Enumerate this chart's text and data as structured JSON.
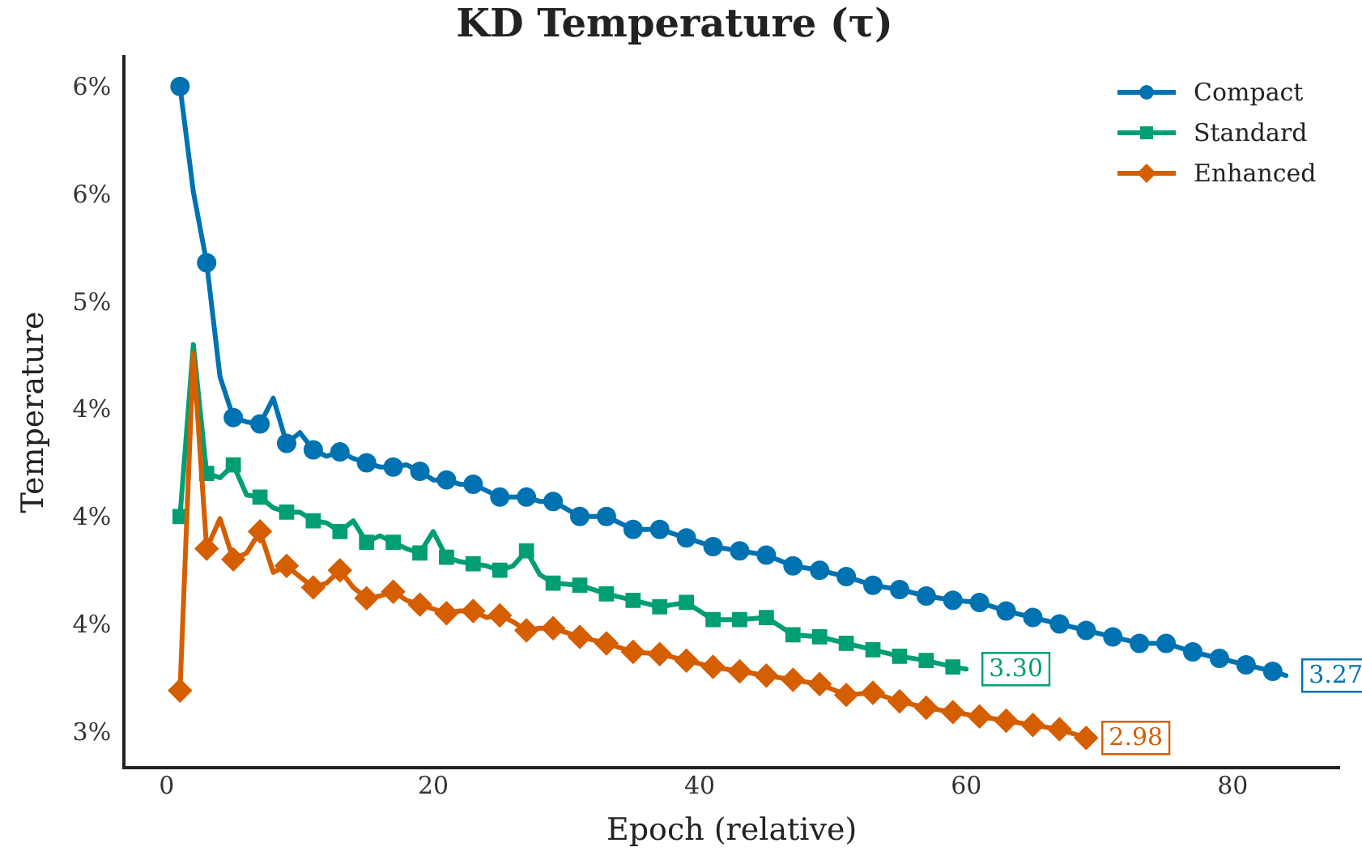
{
  "chart_data": {
    "type": "line",
    "title": "KD Temperature (τ)",
    "xlabel": "Epoch (relative)",
    "ylabel": "Temperature",
    "xlim": [
      -3.2,
      88
    ],
    "xticks": [
      0,
      20,
      40,
      60,
      80
    ],
    "ylim": [
      2.84,
      6.15
    ],
    "yticks": [
      {
        "value": 3.0,
        "label": "3%"
      },
      {
        "value": 3.5,
        "label": "4%"
      },
      {
        "value": 4.0,
        "label": "4%"
      },
      {
        "value": 4.5,
        "label": "4%"
      },
      {
        "value": 5.0,
        "label": "5%"
      },
      {
        "value": 5.5,
        "label": "6%"
      },
      {
        "value": 6.0,
        "label": "6%"
      }
    ],
    "grid": false,
    "legend": "top right",
    "line_style": "solid",
    "series": [
      {
        "name": "Compact",
        "color": "#0072b2",
        "marker": "circle",
        "x": [
          1,
          2,
          3,
          4,
          5,
          6,
          7,
          8,
          9,
          10,
          11,
          12,
          13,
          14,
          15,
          16,
          17,
          18,
          19,
          20,
          21,
          22,
          23,
          24,
          25,
          26,
          27,
          28,
          29,
          31,
          33,
          35,
          37,
          39,
          41,
          43,
          45,
          47,
          49,
          51,
          53,
          55,
          57,
          59,
          61,
          63,
          65,
          67,
          69,
          71,
          73,
          75,
          77,
          79,
          81,
          83,
          84
        ],
        "values": [
          6.01,
          5.52,
          5.19,
          4.66,
          4.47,
          4.45,
          4.44,
          4.56,
          4.35,
          4.4,
          4.32,
          4.29,
          4.31,
          4.28,
          4.26,
          4.24,
          4.24,
          4.25,
          4.22,
          4.18,
          4.18,
          4.16,
          4.16,
          4.13,
          4.1,
          4.1,
          4.1,
          4.08,
          4.08,
          4.01,
          4.01,
          3.95,
          3.95,
          3.91,
          3.87,
          3.85,
          3.83,
          3.78,
          3.76,
          3.73,
          3.69,
          3.67,
          3.64,
          3.62,
          3.61,
          3.57,
          3.54,
          3.51,
          3.48,
          3.45,
          3.42,
          3.42,
          3.38,
          3.35,
          3.32,
          3.29,
          3.27
        ],
        "value_labels": [
          null,
          null,
          null,
          null,
          null,
          null,
          null,
          null,
          null,
          null,
          null,
          null,
          null,
          null,
          null,
          null,
          null,
          null,
          null,
          null,
          null,
          null,
          null,
          null,
          null,
          null,
          null,
          null,
          null,
          null,
          null,
          null,
          null,
          null,
          null,
          null,
          null,
          null,
          null,
          null,
          null,
          null,
          null,
          null,
          null,
          null,
          null,
          null,
          null,
          null,
          null,
          null,
          null,
          null,
          null,
          null,
          "3.27"
        ]
      },
      {
        "name": "Standard",
        "color": "#009e73",
        "marker": "square",
        "x": [
          1,
          2,
          3,
          4,
          5,
          6,
          7,
          8,
          9,
          10,
          11,
          12,
          13,
          14,
          15,
          16,
          17,
          18,
          19,
          20,
          21,
          22,
          23,
          24,
          25,
          26,
          27,
          28,
          29,
          31,
          33,
          35,
          37,
          39,
          41,
          43,
          45,
          47,
          49,
          51,
          53,
          55,
          57,
          59,
          60
        ],
        "values": [
          4.01,
          4.81,
          4.21,
          4.19,
          4.25,
          4.11,
          4.1,
          4.05,
          4.03,
          4.03,
          3.99,
          3.98,
          3.94,
          3.99,
          3.89,
          3.92,
          3.89,
          3.86,
          3.84,
          3.94,
          3.82,
          3.8,
          3.79,
          3.78,
          3.76,
          3.78,
          3.85,
          3.74,
          3.7,
          3.69,
          3.65,
          3.62,
          3.59,
          3.61,
          3.53,
          3.53,
          3.54,
          3.46,
          3.45,
          3.42,
          3.39,
          3.36,
          3.34,
          3.31,
          3.3
        ],
        "value_labels": [
          null,
          null,
          null,
          null,
          null,
          null,
          null,
          null,
          null,
          null,
          null,
          null,
          null,
          null,
          null,
          null,
          null,
          null,
          null,
          null,
          null,
          null,
          null,
          null,
          null,
          null,
          null,
          null,
          null,
          null,
          null,
          null,
          null,
          null,
          null,
          null,
          null,
          null,
          null,
          null,
          null,
          null,
          null,
          null,
          "3.30"
        ]
      },
      {
        "name": "Enhanced",
        "color": "#d55e00",
        "marker": "diamond",
        "x": [
          1,
          2,
          3,
          4,
          5,
          6,
          7,
          8,
          9,
          10,
          11,
          12,
          13,
          14,
          15,
          16,
          17,
          18,
          19,
          20,
          21,
          22,
          23,
          24,
          25,
          26,
          27,
          28,
          29,
          31,
          33,
          35,
          37,
          39,
          41,
          43,
          45,
          47,
          49,
          51,
          53,
          55,
          57,
          59,
          61,
          63,
          65,
          67,
          69
        ],
        "values": [
          3.2,
          4.77,
          3.86,
          4.0,
          3.81,
          3.84,
          3.94,
          3.75,
          3.78,
          3.73,
          3.68,
          3.7,
          3.76,
          3.68,
          3.63,
          3.64,
          3.66,
          3.62,
          3.6,
          3.58,
          3.56,
          3.57,
          3.57,
          3.54,
          3.55,
          3.52,
          3.48,
          3.49,
          3.49,
          3.45,
          3.42,
          3.38,
          3.37,
          3.34,
          3.31,
          3.29,
          3.27,
          3.25,
          3.23,
          3.18,
          3.19,
          3.15,
          3.12,
          3.1,
          3.08,
          3.06,
          3.04,
          3.02,
          2.98
        ],
        "value_labels": [
          null,
          null,
          null,
          null,
          null,
          null,
          null,
          null,
          null,
          null,
          null,
          null,
          null,
          null,
          null,
          null,
          null,
          null,
          null,
          null,
          null,
          null,
          null,
          null,
          null,
          null,
          null,
          null,
          null,
          null,
          null,
          null,
          null,
          null,
          null,
          null,
          null,
          null,
          null,
          null,
          null,
          null,
          null,
          null,
          null,
          null,
          null,
          null,
          "2.98"
        ]
      }
    ]
  }
}
